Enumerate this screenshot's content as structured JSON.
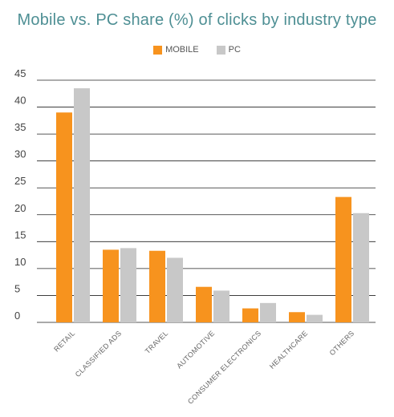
{
  "chart_data": {
    "type": "bar",
    "title": "Mobile vs. PC share (%) of clicks by industry type",
    "categories": [
      "RETAIL",
      "CLASSIFIED ADS",
      "TRAVEL",
      "AUTOMOTIVE",
      "CONSUMER ELECTRONICS",
      "HEALTHCARE",
      "OTHERS"
    ],
    "series": [
      {
        "name": "MOBILE",
        "color": "#f7931e",
        "values": [
          39.0,
          13.5,
          13.3,
          6.6,
          2.6,
          1.9,
          23.3
        ]
      },
      {
        "name": "PC",
        "color": "#c8c8c8",
        "values": [
          43.5,
          13.8,
          12.0,
          5.9,
          3.6,
          1.4,
          20.3
        ]
      }
    ],
    "yticks": [
      0,
      5,
      10,
      15,
      20,
      25,
      30,
      35,
      40,
      45
    ],
    "ylim": [
      0,
      45
    ],
    "grid": true,
    "legend_position": "top-center",
    "xlabel": "",
    "ylabel": ""
  }
}
